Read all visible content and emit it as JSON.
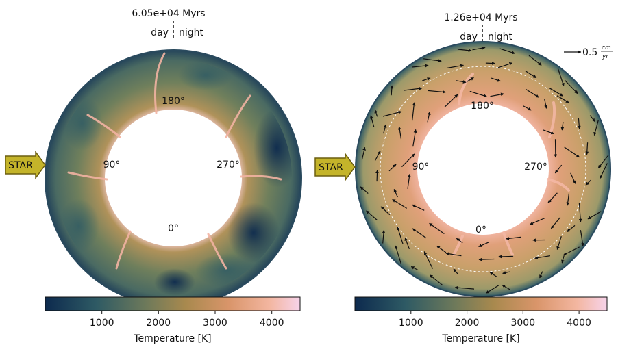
{
  "panels": [
    {
      "time_label": "6.05e+04 Myrs",
      "day_label": "day",
      "night_label": "night",
      "star_label": "STAR",
      "angles": {
        "a180": "180°",
        "a90": "90°",
        "a270": "270°",
        "a0": "0°"
      },
      "colorbar": {
        "label": "Temperature [K]",
        "ticks": [
          "1000",
          "2000",
          "3000",
          "4000"
        ],
        "min": 0,
        "max": 4500
      },
      "has_velocity_vectors": false
    },
    {
      "time_label": "1.26e+04 Myrs",
      "day_label": "day",
      "night_label": "night",
      "star_label": "STAR",
      "angles": {
        "a180": "180°",
        "a90": "90°",
        "a270": "270°",
        "a0": "0°"
      },
      "colorbar": {
        "label": "Temperature [K]",
        "ticks": [
          "1000",
          "2000",
          "3000",
          "4000"
        ],
        "min": 0,
        "max": 4500
      },
      "has_velocity_vectors": true,
      "vector_scale": {
        "value": "0.5",
        "unit_num": "cm",
        "unit_den": "yr"
      }
    }
  ],
  "colormap": [
    "#0d2a4e",
    "#2e5a64",
    "#6f7a5a",
    "#a8894e",
    "#d9956a",
    "#f3b6a0",
    "#f7d3ea"
  ],
  "colors": {
    "star_arrow_fill": "#c4b42a",
    "star_arrow_stroke": "#6b5e10"
  }
}
